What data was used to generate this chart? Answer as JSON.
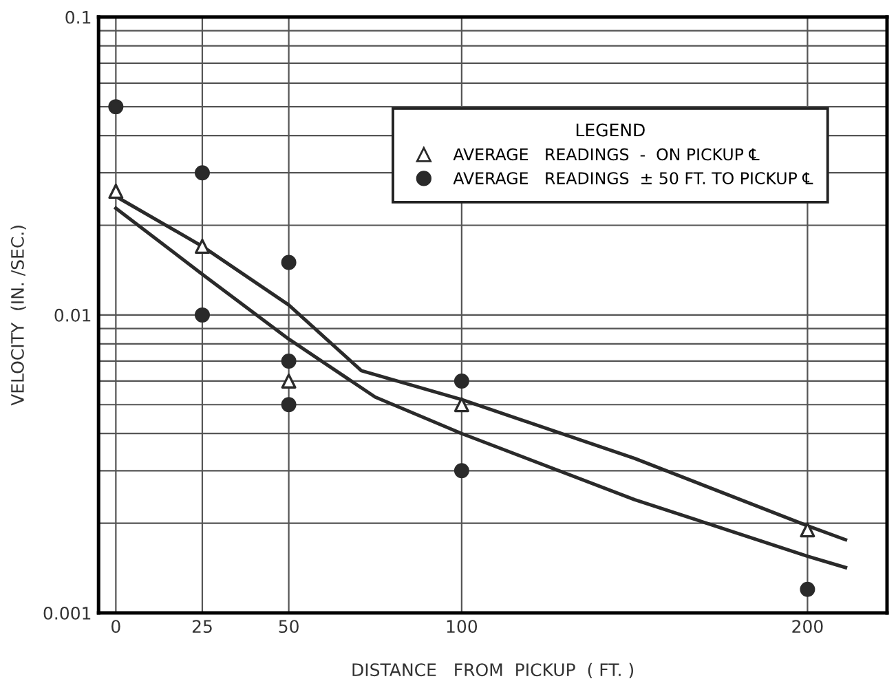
{
  "chart_data": {
    "type": "scatter",
    "xlabel": "DISTANCE   FROM  PICKUP  ( FT. )",
    "ylabel": "VELOCITY  (IN. /SEC.)",
    "legend_title": "LEGEND",
    "log": "y",
    "grid": true,
    "legend": "top right",
    "xlim": [
      -5,
      223
    ],
    "xticks": [
      0,
      25,
      50,
      100,
      200
    ],
    "ylim": [
      0.001,
      0.1
    ],
    "yticks": [
      0.001,
      {
        "value": 0.002,
        "label": null
      },
      {
        "value": 0.003,
        "label": null
      },
      {
        "value": 0.004,
        "label": null
      },
      {
        "value": 0.005,
        "label": null
      },
      {
        "value": 0.006,
        "label": null
      },
      {
        "value": 0.007,
        "label": null
      },
      {
        "value": 0.008,
        "label": null
      },
      {
        "value": 0.009,
        "label": null
      },
      0.01,
      {
        "value": 0.02,
        "label": null
      },
      {
        "value": 0.03,
        "label": null
      },
      {
        "value": 0.04,
        "label": null
      },
      {
        "value": 0.05,
        "label": null
      },
      {
        "value": 0.06,
        "label": null
      },
      {
        "value": 0.07,
        "label": null
      },
      {
        "value": 0.08,
        "label": null
      },
      {
        "value": 0.09,
        "label": null
      },
      0.1
    ],
    "series": [
      {
        "type": "line",
        "color": "#2a2a2a",
        "marker": "none",
        "x": [
          0,
          25,
          50,
          71,
          100,
          150,
          200,
          211
        ],
        "values": [
          0.025,
          0.017,
          0.0108,
          0.0065,
          0.0052,
          0.0033,
          0.00196,
          0.00176
        ]
      },
      {
        "type": "line",
        "color": "#2a2a2a",
        "marker": "none",
        "x": [
          0,
          25,
          50,
          75,
          100,
          150,
          200,
          211
        ],
        "values": [
          0.0228,
          0.0137,
          0.0083,
          0.0053,
          0.004,
          0.0024,
          0.00155,
          0.00142
        ]
      },
      {
        "name": "AVERAGE   READINGS  -  ON PICKUP ℄",
        "color": "#2a2a2a",
        "marker": "triangle",
        "x": [
          0,
          25,
          50,
          100,
          200
        ],
        "values": [
          0.026,
          0.017,
          0.006,
          0.005,
          0.0019
        ]
      },
      {
        "name": "AVERAGE   READINGS  ± 50 FT. TO PICKUP ℄",
        "color": "#2a2a2a",
        "marker": "circle",
        "x": [
          0,
          25,
          25,
          50,
          50,
          50,
          100,
          100,
          200
        ],
        "values": [
          0.05,
          0.03,
          0.01,
          0.015,
          0.007,
          0.005,
          0.006,
          0.003,
          0.0012
        ]
      }
    ]
  }
}
